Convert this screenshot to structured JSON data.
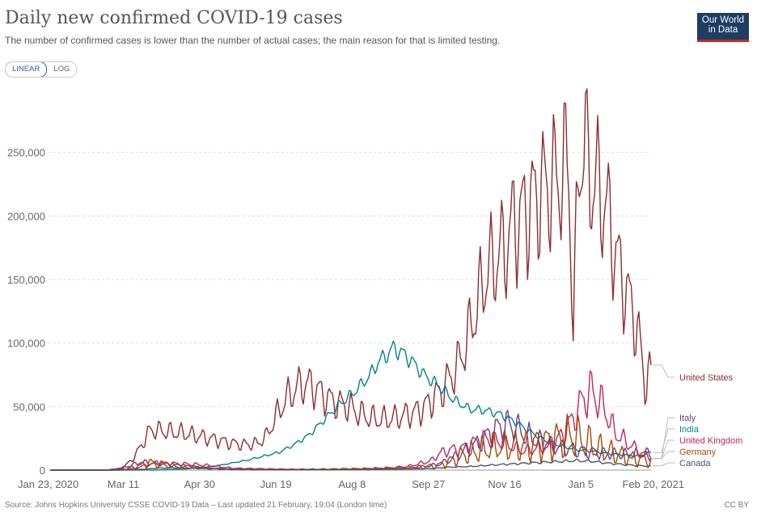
{
  "header": {
    "title": "Daily new confirmed COVID-19 cases",
    "subtitle": "The number of confirmed cases is lower than the number of actual cases; the main reason for that is limited testing.",
    "logo_line1": "Our World",
    "logo_line2": "in Data"
  },
  "controls": {
    "linear_label": "LINEAR",
    "log_label": "LOG"
  },
  "footer": {
    "source": "Source: Johns Hopkins University CSSE COVID-19 Data – Last updated 21 February, 19:04 (London time)",
    "license": "CC BY"
  },
  "chart_data": {
    "type": "line",
    "title": "Daily new confirmed COVID-19 cases",
    "xlabel": "",
    "ylabel": "",
    "ylim": [
      0,
      300000
    ],
    "xlim_days": [
      0,
      394
    ],
    "y_ticks": [
      0,
      50000,
      100000,
      150000,
      200000,
      250000
    ],
    "y_tick_labels": [
      "0",
      "50,000",
      "100,000",
      "150,000",
      "200,000",
      "250,000"
    ],
    "x_ticks": [
      0,
      48,
      98,
      148,
      198,
      248,
      298,
      348,
      394
    ],
    "x_tick_labels": [
      "Jan 23, 2020",
      "Mar 11",
      "Apr 30",
      "Jun 19",
      "Aug 8",
      "Sep 27",
      "Nov 16",
      "Jan 5",
      "Feb 20, 2021"
    ],
    "x_unit": "days since Jan 23, 2020",
    "grid": true,
    "series": [
      {
        "name": "United States",
        "color": "#8c2d30",
        "weekly_amp": 0.2,
        "x": [
          0,
          40,
          48,
          55,
          62,
          66,
          72,
          80,
          88,
          96,
          104,
          112,
          120,
          128,
          136,
          142,
          148,
          154,
          160,
          166,
          172,
          178,
          184,
          190,
          196,
          202,
          208,
          214,
          220,
          226,
          232,
          238,
          244,
          250,
          256,
          262,
          268,
          274,
          280,
          286,
          292,
          298,
          304,
          310,
          316,
          322,
          328,
          334,
          340,
          343,
          347,
          351,
          354,
          358,
          362,
          366,
          370,
          374,
          378,
          382,
          386,
          390,
          392,
          394
        ],
        "y": [
          0,
          100,
          2000,
          10000,
          24000,
          32000,
          31000,
          30000,
          29000,
          27000,
          25000,
          23000,
          21000,
          20000,
          21000,
          27000,
          42000,
          55000,
          63000,
          68000,
          66000,
          60000,
          55000,
          52000,
          50000,
          45000,
          42000,
          40000,
          40000,
          41000,
          43000,
          45000,
          48000,
          55000,
          62000,
          72000,
          84000,
          105000,
          130000,
          155000,
          165000,
          175000,
          195000,
          200000,
          210000,
          220000,
          225000,
          230000,
          240000,
          110000,
          250000,
          260000,
          230000,
          225000,
          215000,
          200000,
          175000,
          155000,
          140000,
          125000,
          105000,
          65000,
          80000,
          72000
        ]
      },
      {
        "name": "India",
        "color": "#00847e",
        "weekly_amp": 0.06,
        "x": [
          0,
          70,
          90,
          110,
          130,
          150,
          160,
          170,
          180,
          190,
          200,
          210,
          215,
          220,
          225,
          230,
          235,
          240,
          245,
          255,
          265,
          275,
          285,
          295,
          305,
          315,
          325,
          335,
          345,
          355,
          365,
          375,
          385,
          394
        ],
        "y": [
          0,
          100,
          1000,
          3500,
          8000,
          14000,
          20000,
          28000,
          40000,
          52000,
          62000,
          75000,
          85000,
          90000,
          96000,
          93000,
          88000,
          82000,
          75000,
          66000,
          55000,
          48000,
          47000,
          44000,
          38000,
          30000,
          23000,
          19000,
          16000,
          15000,
          13000,
          12000,
          11000,
          14000
        ]
      },
      {
        "name": "Italy",
        "color": "#6d3e91",
        "weekly_amp": 0.3,
        "x": [
          0,
          35,
          45,
          55,
          62,
          70,
          80,
          90,
          100,
          120,
          150,
          180,
          200,
          210,
          225,
          240,
          255,
          262,
          270,
          280,
          290,
          295,
          300,
          305,
          310,
          320,
          330,
          340,
          350,
          360,
          370,
          380,
          394
        ],
        "y": [
          0,
          0,
          1000,
          4500,
          6000,
          5500,
          4000,
          3000,
          1800,
          800,
          250,
          300,
          600,
          1000,
          1500,
          2000,
          4500,
          8000,
          14000,
          21000,
          30000,
          34000,
          36000,
          34000,
          29000,
          23000,
          19000,
          17000,
          15000,
          14000,
          13000,
          12000,
          13000
        ]
      },
      {
        "name": "United Kingdom",
        "color": "#c4235f",
        "weekly_amp": 0.25,
        "x": [
          0,
          40,
          55,
          65,
          75,
          85,
          95,
          105,
          120,
          140,
          160,
          180,
          200,
          220,
          235,
          250,
          255,
          262,
          270,
          280,
          285,
          290,
          295,
          300,
          310,
          320,
          330,
          335,
          340,
          345,
          350,
          355,
          360,
          365,
          370,
          380,
          390,
          394
        ],
        "y": [
          0,
          0,
          1200,
          4500,
          5500,
          5000,
          4500,
          3500,
          1500,
          1000,
          700,
          600,
          900,
          1500,
          3000,
          7500,
          13000,
          16000,
          17000,
          23000,
          25000,
          24000,
          22000,
          20000,
          15000,
          17000,
          21000,
          27000,
          35000,
          45000,
          57000,
          62000,
          55000,
          45000,
          30000,
          20000,
          12000,
          11000
        ]
      },
      {
        "name": "Germany",
        "color": "#c15065",
        "draw_color": "#a04b07",
        "weekly_amp": 0.55,
        "x": [
          0,
          40,
          50,
          60,
          65,
          70,
          80,
          90,
          100,
          110,
          130,
          160,
          190,
          210,
          230,
          245,
          255,
          260,
          265,
          270,
          280,
          290,
          295,
          300,
          310,
          320,
          330,
          335,
          340,
          345,
          350,
          360,
          370,
          380,
          390,
          394
        ],
        "y": [
          0,
          0,
          800,
          4500,
          6000,
          5000,
          3500,
          2500,
          1500,
          800,
          400,
          500,
          900,
          1200,
          1700,
          2500,
          4000,
          6000,
          9000,
          12000,
          15000,
          18000,
          19000,
          18000,
          19000,
          21000,
          23000,
          25000,
          27000,
          26000,
          23000,
          17000,
          13000,
          10000,
          8000,
          7000
        ]
      },
      {
        "name": "Canada",
        "color": "#4b5563",
        "weekly_amp": 0.12,
        "x": [
          0,
          45,
          60,
          70,
          80,
          95,
          110,
          130,
          150,
          180,
          210,
          230,
          250,
          262,
          275,
          290,
          305,
          320,
          335,
          345,
          350,
          355,
          365,
          375,
          385,
          394
        ],
        "y": [
          0,
          0,
          600,
          1500,
          1800,
          1500,
          1000,
          400,
          300,
          350,
          400,
          700,
          1200,
          2300,
          2800,
          4000,
          5000,
          6000,
          6800,
          7500,
          7200,
          7000,
          5500,
          4500,
          3500,
          3000
        ]
      }
    ]
  }
}
